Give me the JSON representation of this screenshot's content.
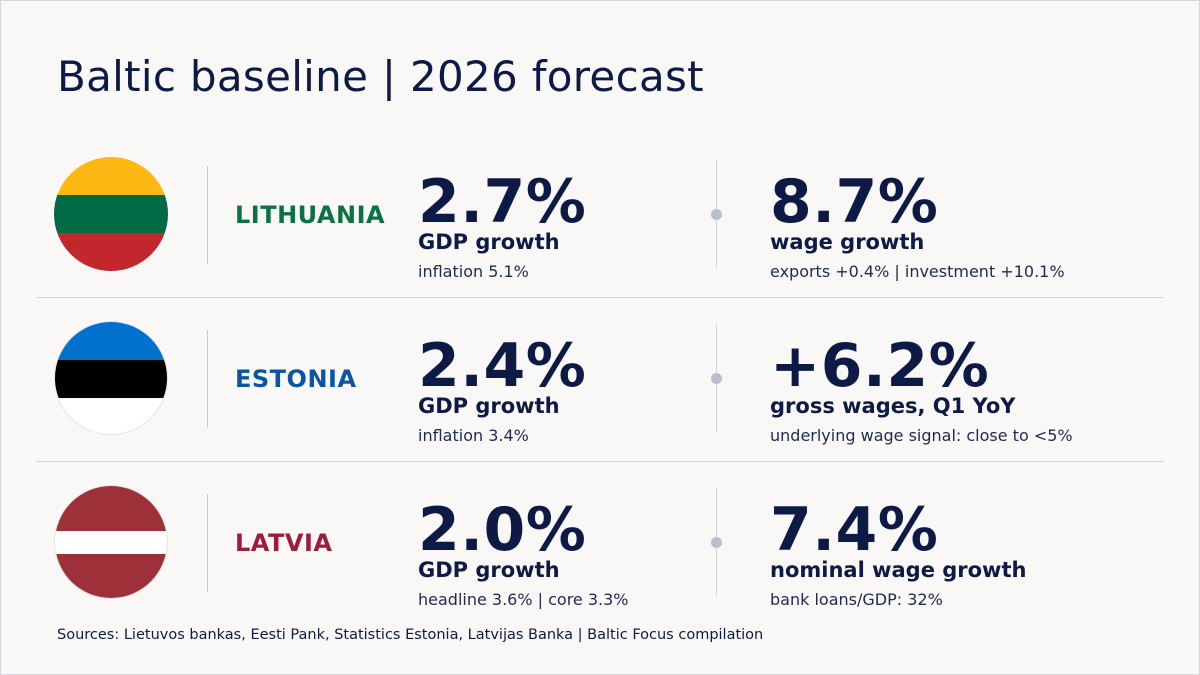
{
  "title": "Baltic baseline | 2026 forecast",
  "rows": [
    {
      "country": "LITHUANIA",
      "country_color": "#0b7342",
      "flag_icon": "lithuania-flag-icon",
      "flag_colors": [
        "#fdb913",
        "#006a44",
        "#c1272d"
      ],
      "gdp_value": "2.7%",
      "gdp_label": "GDP growth",
      "gdp_sub": "inflation 5.1%",
      "second_value": "8.7%",
      "second_label": "wage growth",
      "second_sub": "exports +0.4%  |  investment +10.1%"
    },
    {
      "country": "ESTONIA",
      "country_color": "#0a55a6",
      "flag_icon": "estonia-flag-icon",
      "flag_colors": [
        "#0072ce",
        "#000000",
        "#ffffff"
      ],
      "gdp_value": "2.4%",
      "gdp_label": "GDP growth",
      "gdp_sub": "inflation 3.4%",
      "second_value": "+6.2%",
      "second_label": "gross wages, Q1 YoY",
      "second_sub": "underlying wage signal: close to <5%"
    },
    {
      "country": "LATVIA",
      "country_color": "#9e1b3c",
      "flag_icon": "latvia-flag-icon",
      "flag_colors": [
        "#9e3039",
        "#ffffff",
        "#9e3039"
      ],
      "gdp_value": "2.0%",
      "gdp_label": "GDP growth",
      "gdp_sub": "headline 3.6%  |  core 3.3%",
      "second_value": "7.4%",
      "second_label": "nominal wage growth",
      "second_sub": "bank loans/GDP: 32%"
    }
  ],
  "sources": "Sources: Lietuvos bankas, Eesti Pank, Statistics Estonia, Latvijas Banka | Baltic Focus compilation"
}
